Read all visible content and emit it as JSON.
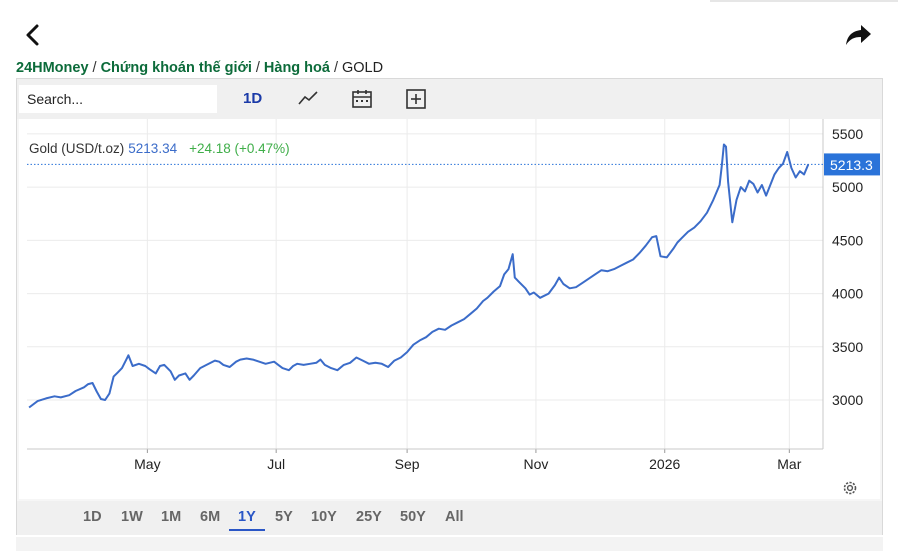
{
  "nav": {
    "back_icon": "chevron-left-icon",
    "share_icon": "share-arrow-icon"
  },
  "breadcrumb": {
    "items": [
      "24HMoney",
      "Chứng khoán thế giới",
      "Hàng hoá"
    ],
    "separator": "/",
    "current": "GOLD"
  },
  "toolbar": {
    "search_placeholder": "Search...",
    "interval": "1D",
    "icons": [
      "line-chart-icon",
      "calendar-icon",
      "add-box-icon"
    ]
  },
  "legend": {
    "symbol": "Gold (USD/t.oz)",
    "price": "5213.34",
    "change": "+24.18 (+0.47%)"
  },
  "price_label": "5213.3",
  "ranges": [
    "1D",
    "1W",
    "1M",
    "6M",
    "1Y",
    "5Y",
    "10Y",
    "25Y",
    "50Y",
    "All"
  ],
  "active_range": "1Y",
  "colors": {
    "line": "#3b6cc9",
    "price_tag": "#2a73d9",
    "change": "#3fae49",
    "brand": "#0c6b3a",
    "active": "#2a56c6"
  },
  "chart_data": {
    "type": "line",
    "series": [
      {
        "name": "Gold (USD/t.oz)",
        "points": [
          [
            "2025-03-06",
            2930
          ],
          [
            "2025-03-10",
            2990
          ],
          [
            "2025-03-14",
            3015
          ],
          [
            "2025-03-18",
            3035
          ],
          [
            "2025-03-21",
            3025
          ],
          [
            "2025-03-25",
            3045
          ],
          [
            "2025-03-28",
            3085
          ],
          [
            "2025-04-01",
            3120
          ],
          [
            "2025-04-03",
            3150
          ],
          [
            "2025-04-05",
            3160
          ],
          [
            "2025-04-07",
            3080
          ],
          [
            "2025-04-09",
            3010
          ],
          [
            "2025-04-11",
            3000
          ],
          [
            "2025-04-13",
            3060
          ],
          [
            "2025-04-15",
            3220
          ],
          [
            "2025-04-17",
            3260
          ],
          [
            "2025-04-19",
            3300
          ],
          [
            "2025-04-21",
            3380
          ],
          [
            "2025-04-22",
            3420
          ],
          [
            "2025-04-24",
            3320
          ],
          [
            "2025-04-27",
            3340
          ],
          [
            "2025-04-30",
            3320
          ],
          [
            "2025-05-02",
            3290
          ],
          [
            "2025-05-05",
            3250
          ],
          [
            "2025-05-07",
            3320
          ],
          [
            "2025-05-09",
            3330
          ],
          [
            "2025-05-12",
            3270
          ],
          [
            "2025-05-14",
            3190
          ],
          [
            "2025-05-16",
            3230
          ],
          [
            "2025-05-19",
            3250
          ],
          [
            "2025-05-21",
            3190
          ],
          [
            "2025-05-23",
            3230
          ],
          [
            "2025-05-26",
            3300
          ],
          [
            "2025-05-29",
            3330
          ],
          [
            "2025-06-02",
            3370
          ],
          [
            "2025-06-04",
            3360
          ],
          [
            "2025-06-06",
            3330
          ],
          [
            "2025-06-09",
            3310
          ],
          [
            "2025-06-12",
            3360
          ],
          [
            "2025-06-14",
            3380
          ],
          [
            "2025-06-17",
            3390
          ],
          [
            "2025-06-20",
            3380
          ],
          [
            "2025-06-23",
            3360
          ],
          [
            "2025-06-26",
            3340
          ],
          [
            "2025-06-30",
            3360
          ],
          [
            "2025-07-02",
            3330
          ],
          [
            "2025-07-04",
            3300
          ],
          [
            "2025-07-07",
            3280
          ],
          [
            "2025-07-09",
            3320
          ],
          [
            "2025-07-11",
            3340
          ],
          [
            "2025-07-14",
            3330
          ],
          [
            "2025-07-17",
            3340
          ],
          [
            "2025-07-20",
            3350
          ],
          [
            "2025-07-22",
            3380
          ],
          [
            "2025-07-24",
            3330
          ],
          [
            "2025-07-27",
            3300
          ],
          [
            "2025-07-30",
            3280
          ],
          [
            "2025-08-02",
            3330
          ],
          [
            "2025-08-05",
            3350
          ],
          [
            "2025-08-08",
            3400
          ],
          [
            "2025-08-11",
            3370
          ],
          [
            "2025-08-14",
            3340
          ],
          [
            "2025-08-17",
            3350
          ],
          [
            "2025-08-20",
            3340
          ],
          [
            "2025-08-23",
            3310
          ],
          [
            "2025-08-26",
            3370
          ],
          [
            "2025-08-29",
            3400
          ],
          [
            "2025-09-01",
            3450
          ],
          [
            "2025-09-04",
            3520
          ],
          [
            "2025-09-07",
            3560
          ],
          [
            "2025-09-10",
            3590
          ],
          [
            "2025-09-13",
            3640
          ],
          [
            "2025-09-16",
            3670
          ],
          [
            "2025-09-19",
            3660
          ],
          [
            "2025-09-22",
            3700
          ],
          [
            "2025-09-25",
            3730
          ],
          [
            "2025-09-28",
            3760
          ],
          [
            "2025-10-01",
            3810
          ],
          [
            "2025-10-04",
            3860
          ],
          [
            "2025-10-07",
            3930
          ],
          [
            "2025-10-09",
            3960
          ],
          [
            "2025-10-12",
            4020
          ],
          [
            "2025-10-15",
            4070
          ],
          [
            "2025-10-17",
            4180
          ],
          [
            "2025-10-19",
            4230
          ],
          [
            "2025-10-20",
            4300
          ],
          [
            "2025-10-21",
            4370
          ],
          [
            "2025-10-22",
            4150
          ],
          [
            "2025-10-24",
            4110
          ],
          [
            "2025-10-27",
            4050
          ],
          [
            "2025-10-29",
            3990
          ],
          [
            "2025-10-31",
            4010
          ],
          [
            "2025-11-03",
            3960
          ],
          [
            "2025-11-05",
            3980
          ],
          [
            "2025-11-07",
            4000
          ],
          [
            "2025-11-10",
            4080
          ],
          [
            "2025-11-12",
            4150
          ],
          [
            "2025-11-14",
            4090
          ],
          [
            "2025-11-17",
            4050
          ],
          [
            "2025-11-20",
            4060
          ],
          [
            "2025-11-23",
            4100
          ],
          [
            "2025-11-26",
            4140
          ],
          [
            "2025-11-29",
            4180
          ],
          [
            "2025-12-02",
            4220
          ],
          [
            "2025-12-05",
            4210
          ],
          [
            "2025-12-08",
            4230
          ],
          [
            "2025-12-11",
            4260
          ],
          [
            "2025-12-14",
            4290
          ],
          [
            "2025-12-17",
            4320
          ],
          [
            "2025-12-20",
            4380
          ],
          [
            "2025-12-23",
            4450
          ],
          [
            "2025-12-26",
            4530
          ],
          [
            "2025-12-28",
            4540
          ],
          [
            "2025-12-30",
            4350
          ],
          [
            "2026-01-02",
            4340
          ],
          [
            "2026-01-05",
            4420
          ],
          [
            "2026-01-07",
            4480
          ],
          [
            "2026-01-09",
            4520
          ],
          [
            "2026-01-12",
            4580
          ],
          [
            "2026-01-15",
            4620
          ],
          [
            "2026-01-18",
            4680
          ],
          [
            "2026-01-21",
            4760
          ],
          [
            "2026-01-24",
            4880
          ],
          [
            "2026-01-27",
            5020
          ],
          [
            "2026-01-28",
            5200
          ],
          [
            "2026-01-29",
            5400
          ],
          [
            "2026-01-30",
            5380
          ],
          [
            "2026-01-31",
            5050
          ],
          [
            "2026-02-02",
            4670
          ],
          [
            "2026-02-04",
            4880
          ],
          [
            "2026-02-06",
            5000
          ],
          [
            "2026-02-08",
            4960
          ],
          [
            "2026-02-10",
            5060
          ],
          [
            "2026-02-12",
            5030
          ],
          [
            "2026-02-14",
            4950
          ],
          [
            "2026-02-16",
            5020
          ],
          [
            "2026-02-18",
            4920
          ],
          [
            "2026-02-20",
            5020
          ],
          [
            "2026-02-22",
            5120
          ],
          [
            "2026-02-24",
            5180
          ],
          [
            "2026-02-26",
            5220
          ],
          [
            "2026-02-28",
            5330
          ],
          [
            "2026-03-02",
            5180
          ],
          [
            "2026-03-04",
            5090
          ],
          [
            "2026-03-06",
            5150
          ],
          [
            "2026-03-08",
            5120
          ],
          [
            "2026-03-10",
            5213.34
          ]
        ]
      }
    ],
    "x_ticks": [
      "May",
      "Jul",
      "Sep",
      "Nov",
      "2026",
      "Mar"
    ],
    "y_ticks": [
      3000,
      3500,
      4000,
      4500,
      5000,
      5500
    ],
    "y_range": [
      2540,
      5640
    ],
    "grid": true,
    "last_value": 5213.34
  }
}
